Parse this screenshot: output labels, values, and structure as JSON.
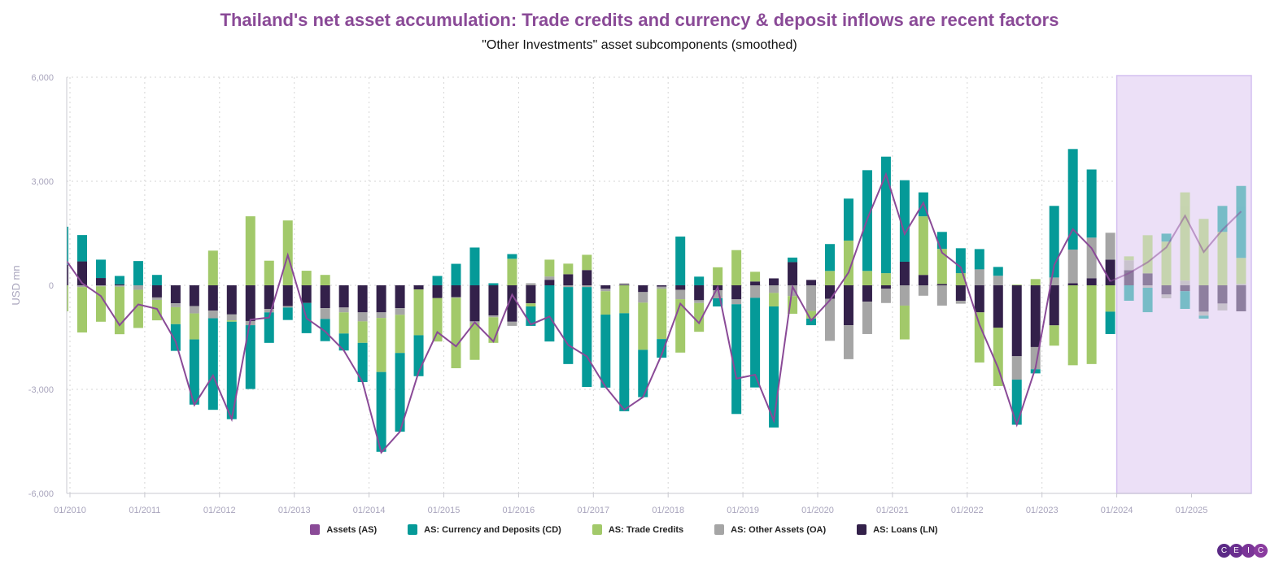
{
  "header": {
    "title": "Thailand's net asset accumulation: Trade credits and currency & deposit inflows are recent factors",
    "subtitle": "\"Other Investments\" asset subcomponents (smoothed)",
    "title_color": "#8a4a97"
  },
  "logo": {
    "letters": [
      "C",
      "E",
      "I",
      "C"
    ],
    "color": "#6a2f8f"
  },
  "chart_data": {
    "type": "bar",
    "stacked": true,
    "ylabel": "USD mn",
    "ylim": [
      -6000,
      6000
    ],
    "yticks": [
      "6,000",
      "3,000",
      "0",
      "-3,000",
      "-6,000"
    ],
    "ytick_values": [
      6000,
      3000,
      0,
      -3000,
      -6000
    ],
    "xticks": [
      "01/2010",
      "01/2011",
      "01/2012",
      "01/2013",
      "01/2014",
      "01/2015",
      "01/2016",
      "01/2017",
      "01/2018",
      "01/2019",
      "01/2020",
      "01/2021",
      "01/2022",
      "01/2023",
      "01/2024",
      "01/2025"
    ],
    "grid": true,
    "legend_position": "bottom",
    "forecast_region": {
      "from": "01/2024",
      "to": "end",
      "color": "#ece0f7",
      "border": "#d4bff0"
    },
    "categories": [
      "Q4 2009",
      "Q1 2010",
      "Q2 2010",
      "Q3 2010",
      "Q4 2010",
      "Q1 2011",
      "Q2 2011",
      "Q3 2011",
      "Q4 2011",
      "Q1 2012",
      "Q2 2012",
      "Q3 2012",
      "Q4 2012",
      "Q1 2013",
      "Q2 2013",
      "Q3 2013",
      "Q4 2013",
      "Q1 2014",
      "Q2 2014",
      "Q3 2014",
      "Q4 2014",
      "Q1 2015",
      "Q2 2015",
      "Q3 2015",
      "Q4 2015",
      "Q1 2016",
      "Q2 2016",
      "Q3 2016",
      "Q4 2016",
      "Q1 2017",
      "Q2 2017",
      "Q3 2017",
      "Q4 2017",
      "Q1 2018",
      "Q2 2018",
      "Q3 2018",
      "Q4 2018",
      "Q1 2019",
      "Q2 2019",
      "Q3 2019",
      "Q4 2019",
      "Q1 2020",
      "Q2 2020",
      "Q3 2020",
      "Q4 2020",
      "Q1 2021",
      "Q2 2021",
      "Q3 2021",
      "Q4 2021",
      "Q1 2022",
      "Q2 2022",
      "Q3 2022",
      "Q4 2022",
      "Q1 2023",
      "Q2 2023",
      "Q3 2023",
      "Q4 2023",
      "Q1 2024",
      "Q2 2024",
      "Q3 2024",
      "Q4 2024",
      "Q1 2025",
      "Q2 2025",
      "Q3 2025"
    ],
    "series": [
      {
        "name": "Assets (AS)",
        "type": "line",
        "color": "#8a4a97",
        "values": [
          830,
          60,
          -310,
          -1150,
          -550,
          -680,
          -1620,
          -3450,
          -2600,
          -3860,
          -990,
          -930,
          870,
          -950,
          -1330,
          -1880,
          -2790,
          -4820,
          -4220,
          -2500,
          -1350,
          -1760,
          -1070,
          -1620,
          -270,
          -1130,
          -900,
          -1720,
          -2050,
          -2930,
          -3590,
          -3225,
          -2000,
          -530,
          -1090,
          -55,
          -2690,
          -2580,
          -3900,
          -40,
          -1015,
          -430,
          370,
          1910,
          3200,
          1480,
          2380,
          940,
          520,
          -1130,
          -2380,
          -4020,
          -2380,
          585,
          1620,
          1070,
          115,
          350,
          665,
          1095,
          2005,
          960,
          1600,
          2130
        ]
      },
      {
        "name": "AS: Currency and Deposits (CD)",
        "type": "bar",
        "color": "#059a98",
        "values": [
          1100,
          760,
          530,
          240,
          700,
          300,
          -770,
          -1880,
          -2640,
          -2810,
          -1840,
          -880,
          -360,
          -870,
          -640,
          -490,
          -1130,
          -2300,
          -2270,
          -1180,
          270,
          620,
          1090,
          60,
          135,
          -560,
          -1620,
          -2220,
          -2880,
          -2105,
          -2825,
          -1365,
          -535,
          1405,
          250,
          -235,
          -3165,
          -2585,
          -3490,
          130,
          -190,
          775,
          1210,
          2905,
          3360,
          2350,
          690,
          490,
          720,
          585,
          255,
          -1300,
          -120,
          2065,
          2900,
          1965,
          -645,
          -445,
          -705,
          230,
          -510,
          -85,
          750,
          2075
        ]
      },
      {
        "name": "AS: Trade Credits",
        "type": "bar",
        "color": "#a2c96a",
        "values": [
          -750,
          -1310,
          -1020,
          -1370,
          -1100,
          -590,
          -490,
          -750,
          1000,
          -40,
          1990,
          710,
          1870,
          420,
          300,
          -610,
          -620,
          -1560,
          -1100,
          -1320,
          -1250,
          -2030,
          -1060,
          -740,
          765,
          -90,
          485,
          305,
          440,
          -675,
          -805,
          -1360,
          -1450,
          -1540,
          -830,
          520,
          1015,
          280,
          -390,
          -510,
          -220,
          415,
          1290,
          415,
          350,
          -975,
          1690,
          1010,
          350,
          -1445,
          -1680,
          20,
          180,
          -585,
          -2305,
          -2270,
          -760,
          115,
          1100,
          1260,
          2545,
          1915,
          1540,
          750
        ]
      },
      {
        "name": "AS: Other Assets (OA)",
        "type": "bar",
        "color": "#a5a5a5",
        "values": [
          0,
          -50,
          -30,
          -40,
          -130,
          -70,
          -110,
          -210,
          -220,
          -170,
          -120,
          -100,
          -40,
          0,
          -310,
          -140,
          -260,
          -160,
          -190,
          0,
          0,
          -20,
          -50,
          -50,
          -120,
          60,
          95,
          -50,
          -50,
          -70,
          40,
          -305,
          -60,
          -270,
          -80,
          -235,
          -140,
          -360,
          -220,
          -310,
          -740,
          -1210,
          -980,
          -935,
          -415,
          -585,
          -300,
          -585,
          -85,
          460,
          275,
          -675,
          -640,
          225,
          970,
          1170,
          775,
          285,
          -70,
          -110,
          135,
          -115,
          -200,
          40
        ]
      },
      {
        "name": "AS: Loans (LN)",
        "type": "bar",
        "color": "#33214a",
        "values": [
          590,
          690,
          210,
          30,
          0,
          -350,
          -520,
          -600,
          -730,
          -840,
          -1030,
          -680,
          -600,
          -510,
          -660,
          -640,
          -780,
          -780,
          -660,
          -120,
          -370,
          -340,
          -1040,
          -870,
          -1050,
          -520,
          160,
          320,
          440,
          -100,
          20,
          -195,
          -40,
          -130,
          -430,
          -140,
          -405,
          110,
          200,
          670,
          155,
          -390,
          -1150,
          -470,
          -95,
          680,
          300,
          40,
          -445,
          -780,
          -1225,
          -2045,
          -1780,
          -1155,
          60,
          205,
          740,
          435,
          345,
          -265,
          -170,
          -760,
          -525,
          -750
        ]
      }
    ]
  }
}
